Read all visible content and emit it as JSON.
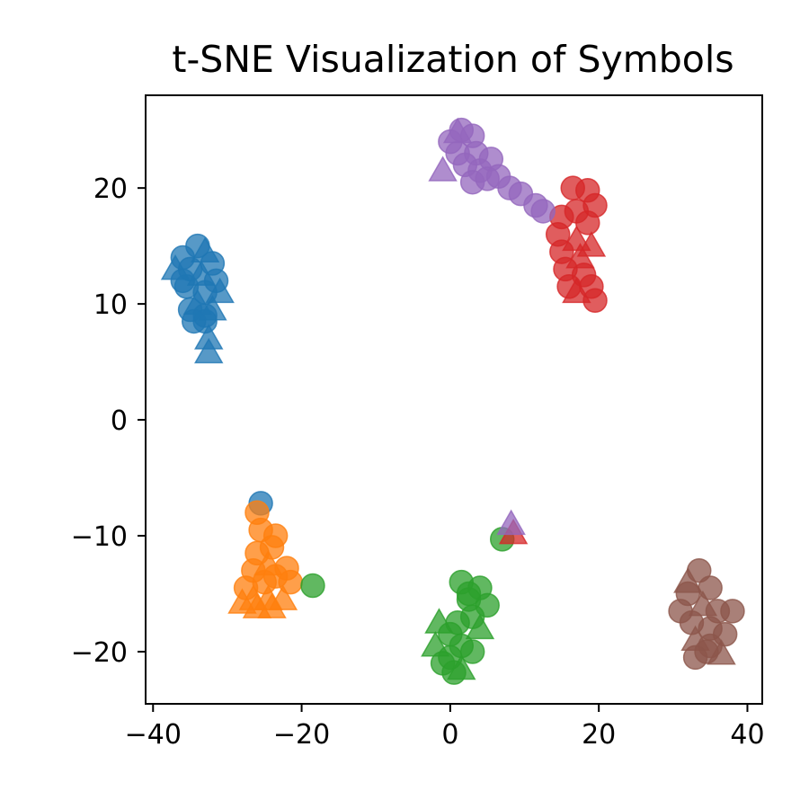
{
  "chart_data": {
    "type": "scatter",
    "title": "t-SNE Visualization of Symbols",
    "xlabel": "",
    "ylabel": "",
    "xlim": [
      -41,
      42
    ],
    "ylim": [
      -24.5,
      28
    ],
    "x_ticks": [
      -40,
      -20,
      0,
      20,
      40
    ],
    "x_tick_labels": [
      "−40",
      "−20",
      "0",
      "20",
      "40"
    ],
    "y_ticks": [
      -20,
      -10,
      0,
      10,
      20
    ],
    "y_tick_labels": [
      "−20",
      "−10",
      "0",
      "10",
      "20"
    ],
    "grid": false,
    "legend": "none",
    "series": [
      {
        "color": "#1f77b4",
        "points": [
          [
            -36,
            14,
            "o"
          ],
          [
            -34,
            15,
            "o"
          ],
          [
            -33,
            14.5,
            "^"
          ],
          [
            -35,
            13,
            "o"
          ],
          [
            -33.5,
            12.5,
            "^"
          ],
          [
            -35.5,
            11.5,
            "o"
          ],
          [
            -33,
            11,
            "o"
          ],
          [
            -34,
            10,
            "^"
          ],
          [
            -35,
            9.5,
            "o"
          ],
          [
            -33,
            8.5,
            "o"
          ],
          [
            -31.5,
            12,
            "o"
          ],
          [
            -31,
            11,
            "^"
          ],
          [
            -32,
            9.5,
            "^"
          ],
          [
            -33,
            9,
            "o"
          ],
          [
            -32.5,
            7,
            "^"
          ],
          [
            -32.5,
            5.8,
            "^"
          ],
          [
            -37,
            13,
            "^"
          ],
          [
            -34.5,
            8.5,
            "o"
          ],
          [
            -36,
            12,
            "o"
          ],
          [
            -32,
            13.5,
            "o"
          ],
          [
            -25.5,
            -7.2,
            "o"
          ]
        ]
      },
      {
        "color": "#ff7f0e",
        "points": [
          [
            -26,
            -8,
            "o"
          ],
          [
            -25.5,
            -9.5,
            "o"
          ],
          [
            -23.5,
            -10,
            "o"
          ],
          [
            -26,
            -11.5,
            "o"
          ],
          [
            -24.5,
            -12.5,
            "^"
          ],
          [
            -26.5,
            -13,
            "o"
          ],
          [
            -25,
            -14,
            "o"
          ],
          [
            -23.5,
            -13.5,
            "o"
          ],
          [
            -21.5,
            -14,
            "o"
          ],
          [
            -27.5,
            -14.5,
            "o"
          ],
          [
            -26.5,
            -15.5,
            "^"
          ],
          [
            -24.5,
            -15.5,
            "^"
          ],
          [
            -22.5,
            -15.5,
            "^"
          ],
          [
            -26,
            -16.2,
            "^"
          ],
          [
            -24,
            -16.2,
            "^"
          ],
          [
            -28,
            -15.8,
            "^"
          ],
          [
            -24,
            -11,
            "o"
          ],
          [
            -22,
            -12.8,
            "o"
          ]
        ]
      },
      {
        "color": "#2ca02c",
        "points": [
          [
            -18.5,
            -14.3,
            "o"
          ],
          [
            7,
            -10.3,
            "o"
          ],
          [
            1.5,
            -14,
            "o"
          ],
          [
            4,
            -14.5,
            "o"
          ],
          [
            2.5,
            -15.5,
            "o"
          ],
          [
            5,
            -16,
            "o"
          ],
          [
            3,
            -17,
            "o"
          ],
          [
            4,
            -18,
            "^"
          ],
          [
            1,
            -17.5,
            "o"
          ],
          [
            -1.5,
            -17.5,
            "^"
          ],
          [
            0,
            -18.5,
            "o"
          ],
          [
            -2,
            -19.5,
            "^"
          ],
          [
            1.5,
            -19.5,
            "o"
          ],
          [
            0,
            -20.5,
            "o"
          ],
          [
            -1,
            -21,
            "o"
          ],
          [
            0.5,
            -21.8,
            "o"
          ],
          [
            1.5,
            -21.5,
            "^"
          ],
          [
            3,
            -20,
            "o"
          ],
          [
            2.5,
            -15,
            "o"
          ]
        ]
      },
      {
        "color": "#d62728",
        "points": [
          [
            16.5,
            20,
            "o"
          ],
          [
            18.5,
            19.8,
            "o"
          ],
          [
            19.5,
            18.5,
            "o"
          ],
          [
            17,
            18,
            "o"
          ],
          [
            15,
            17.5,
            "o"
          ],
          [
            18.5,
            17,
            "o"
          ],
          [
            14.5,
            16,
            "o"
          ],
          [
            17,
            15.5,
            "^"
          ],
          [
            19,
            15,
            "^"
          ],
          [
            15,
            14.5,
            "o"
          ],
          [
            17.5,
            14,
            "^"
          ],
          [
            15.5,
            13,
            "o"
          ],
          [
            18,
            12.5,
            "o"
          ],
          [
            16,
            11.5,
            "o"
          ],
          [
            17,
            11,
            "^"
          ],
          [
            19,
            11.5,
            "o"
          ],
          [
            19.5,
            10.3,
            "o"
          ],
          [
            8.5,
            -9.8,
            "^"
          ]
        ]
      },
      {
        "color": "#9467bd",
        "points": [
          [
            0,
            24,
            "o"
          ],
          [
            1.5,
            25,
            "o"
          ],
          [
            3,
            24.5,
            "o"
          ],
          [
            1,
            23,
            "o"
          ],
          [
            3.5,
            23,
            "o"
          ],
          [
            -1,
            21.5,
            "^"
          ],
          [
            2,
            22,
            "o"
          ],
          [
            4,
            21.5,
            "o"
          ],
          [
            5.5,
            22.5,
            "o"
          ],
          [
            3,
            20.5,
            "o"
          ],
          [
            5,
            20.8,
            "o"
          ],
          [
            6.5,
            21,
            "o"
          ],
          [
            8,
            20,
            "o"
          ],
          [
            9.5,
            19.5,
            "o"
          ],
          [
            11.5,
            18.5,
            "o"
          ],
          [
            12.5,
            18,
            "o"
          ],
          [
            1,
            24.8,
            "^"
          ],
          [
            8.2,
            -9,
            "^"
          ]
        ]
      },
      {
        "color": "#8c564b",
        "points": [
          [
            33.5,
            -13,
            "o"
          ],
          [
            35,
            -14.5,
            "o"
          ],
          [
            32,
            -15,
            "o"
          ],
          [
            34,
            -16,
            "^"
          ],
          [
            31,
            -16.5,
            "o"
          ],
          [
            36,
            -16.5,
            "o"
          ],
          [
            38,
            -16.5,
            "o"
          ],
          [
            32.5,
            -17.5,
            "o"
          ],
          [
            35,
            -18,
            "o"
          ],
          [
            37,
            -18.5,
            "o"
          ],
          [
            33,
            -19,
            "^"
          ],
          [
            35,
            -19.5,
            "o"
          ],
          [
            33,
            -20.5,
            "o"
          ],
          [
            36.5,
            -20.2,
            "^"
          ],
          [
            34.5,
            -20,
            "o"
          ],
          [
            32,
            -14,
            "^"
          ]
        ]
      }
    ]
  }
}
